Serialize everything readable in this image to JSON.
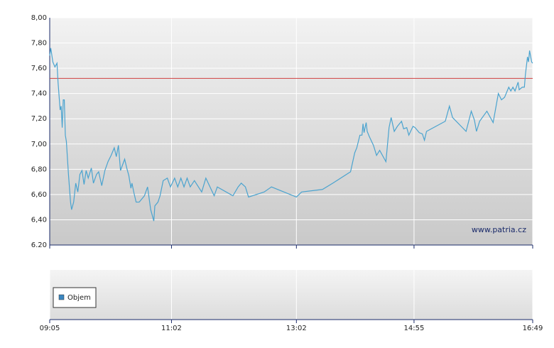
{
  "chart_data": {
    "type": "line",
    "color": "#4aa3cf",
    "source": "www.patria.cz",
    "reference_line": {
      "value": 7.52,
      "color": "#d04040"
    },
    "volume": {
      "name": "Objem",
      "color": "#3a86c0"
    },
    "ylim": [
      6.2,
      8.0
    ],
    "yticks": [
      {
        "value": 8.0,
        "label": "8,00"
      },
      {
        "value": 7.8,
        "label": "7,80"
      },
      {
        "value": 7.6,
        "label": "7,60"
      },
      {
        "value": 7.4,
        "label": "7,40"
      },
      {
        "value": 7.2,
        "label": "7,20"
      },
      {
        "value": 7.0,
        "label": "7,00"
      },
      {
        "value": 6.8,
        "label": "6,80"
      },
      {
        "value": 6.6,
        "label": "6,60"
      },
      {
        "value": 6.4,
        "label": "6,40"
      },
      {
        "value": 6.2,
        "label": "6.20"
      }
    ],
    "xlim": [
      "09:05",
      "16:49"
    ],
    "xticks": [
      "09:05",
      "11:02",
      "13:02",
      "14:55",
      "16:49"
    ],
    "grid": true,
    "x": [
      "09:05",
      "09:06",
      "09:08",
      "09:10",
      "09:12",
      "09:13",
      "09:15",
      "09:16",
      "09:17",
      "09:18",
      "09:19",
      "09:20",
      "09:21",
      "09:23",
      "09:25",
      "09:26",
      "09:28",
      "09:30",
      "09:32",
      "09:34",
      "09:36",
      "09:38",
      "09:40",
      "09:42",
      "09:45",
      "09:47",
      "09:50",
      "09:52",
      "09:55",
      "09:58",
      "10:01",
      "10:04",
      "10:07",
      "10:09",
      "10:11",
      "10:13",
      "10:17",
      "10:19",
      "10:21",
      "10:23",
      "10:24",
      "10:26",
      "10:28",
      "10:31",
      "10:34",
      "10:36",
      "10:39",
      "10:42",
      "10:45",
      "10:46",
      "10:49",
      "10:51",
      "10:54",
      "10:58",
      "11:01",
      "11:05",
      "11:08",
      "11:11",
      "11:14",
      "11:17",
      "11:20",
      "11:24",
      "11:31",
      "11:35",
      "11:43",
      "11:46",
      "12:01",
      "12:06",
      "12:09",
      "12:13",
      "12:16",
      "12:31",
      "12:38",
      "13:02",
      "13:07",
      "13:27",
      "13:37",
      "13:54",
      "13:58",
      "14:00",
      "14:03",
      "14:05",
      "14:06",
      "14:07",
      "14:09",
      "14:10",
      "14:12",
      "14:16",
      "14:19",
      "14:22",
      "14:28",
      "14:31",
      "14:33",
      "14:36",
      "14:39",
      "14:43",
      "14:45",
      "14:48",
      "14:50",
      "14:54",
      "14:56",
      "15:00",
      "15:03",
      "15:05",
      "15:07",
      "15:25",
      "15:29",
      "15:32",
      "15:45",
      "15:50",
      "15:53",
      "15:55",
      "15:58",
      "16:05",
      "16:11",
      "16:16",
      "16:19",
      "16:22",
      "16:26",
      "16:28",
      "16:30",
      "16:32",
      "16:35",
      "16:36",
      "16:39",
      "16:41",
      "16:42",
      "16:44",
      "16:45",
      "16:46",
      "16:48",
      "16:49"
    ],
    "values": [
      7.7,
      7.76,
      7.65,
      7.61,
      7.64,
      7.49,
      7.27,
      7.3,
      7.13,
      7.35,
      7.35,
      7.07,
      7.02,
      6.76,
      6.54,
      6.48,
      6.54,
      6.69,
      6.62,
      6.76,
      6.79,
      6.68,
      6.79,
      6.73,
      6.81,
      6.69,
      6.76,
      6.78,
      6.67,
      6.79,
      6.86,
      6.91,
      6.97,
      6.9,
      6.99,
      6.79,
      6.88,
      6.81,
      6.75,
      6.65,
      6.69,
      6.61,
      6.54,
      6.54,
      6.57,
      6.59,
      6.66,
      6.48,
      6.39,
      6.51,
      6.54,
      6.59,
      6.71,
      6.73,
      6.66,
      6.73,
      6.66,
      6.73,
      6.66,
      6.73,
      6.66,
      6.71,
      6.62,
      6.73,
      6.59,
      6.66,
      6.59,
      6.66,
      6.69,
      6.66,
      6.58,
      6.62,
      6.66,
      6.58,
      6.62,
      6.64,
      6.69,
      6.78,
      6.93,
      6.97,
      7.07,
      7.07,
      7.16,
      7.09,
      7.17,
      7.1,
      7.06,
      6.99,
      6.91,
      6.95,
      6.86,
      7.13,
      7.21,
      7.1,
      7.14,
      7.18,
      7.12,
      7.13,
      7.07,
      7.14,
      7.13,
      7.09,
      7.08,
      7.03,
      7.1,
      7.18,
      7.3,
      7.21,
      7.1,
      7.26,
      7.19,
      7.1,
      7.18,
      7.26,
      7.17,
      7.4,
      7.35,
      7.37,
      7.45,
      7.42,
      7.45,
      7.42,
      7.49,
      7.43,
      7.45,
      7.45,
      7.55,
      7.69,
      7.65,
      7.74,
      7.65,
      7.64
    ]
  }
}
